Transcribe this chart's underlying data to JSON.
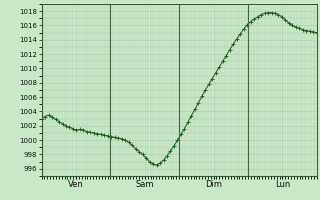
{
  "title": "",
  "bg_color": "#c8e8c8",
  "plot_bg_color": "#c8e8c8",
  "grid_color": "#b0c8b0",
  "line_color": "#1a5c1a",
  "marker_color": "#1a5c1a",
  "y_min": 995,
  "y_max": 1019,
  "y_ticks": [
    996,
    998,
    1000,
    1002,
    1004,
    1006,
    1008,
    1010,
    1012,
    1014,
    1016,
    1018
  ],
  "x_labels": [
    "Ven",
    "Sam",
    "Dim",
    "Lun"
  ],
  "day_vline_x": [
    0,
    24,
    48,
    72
  ],
  "total_hours": 96,
  "pressure_data": [
    1003.0,
    1003.3,
    1003.5,
    1003.2,
    1002.9,
    1002.6,
    1002.3,
    1002.0,
    1001.8,
    1001.6,
    1001.4,
    1001.5,
    1001.4,
    1001.2,
    1001.1,
    1001.0,
    1000.9,
    1000.8,
    1000.7,
    1000.6,
    1000.5,
    1000.4,
    1000.3,
    1000.2,
    1000.0,
    999.7,
    999.3,
    998.8,
    998.4,
    998.0,
    997.5,
    997.0,
    996.7,
    996.5,
    996.8,
    997.2,
    997.8,
    998.5,
    999.2,
    1000.0,
    1000.8,
    1001.6,
    1002.5,
    1003.4,
    1004.3,
    1005.2,
    1006.1,
    1007.0,
    1007.8,
    1008.6,
    1009.4,
    1010.2,
    1011.0,
    1011.8,
    1012.6,
    1013.4,
    1014.1,
    1014.8,
    1015.5,
    1016.1,
    1016.5,
    1016.9,
    1017.2,
    1017.5,
    1017.7,
    1017.8,
    1017.8,
    1017.7,
    1017.5,
    1017.2,
    1016.8,
    1016.3,
    1016.0,
    1015.8,
    1015.6,
    1015.4,
    1015.3,
    1015.2,
    1015.1,
    1015.0
  ]
}
